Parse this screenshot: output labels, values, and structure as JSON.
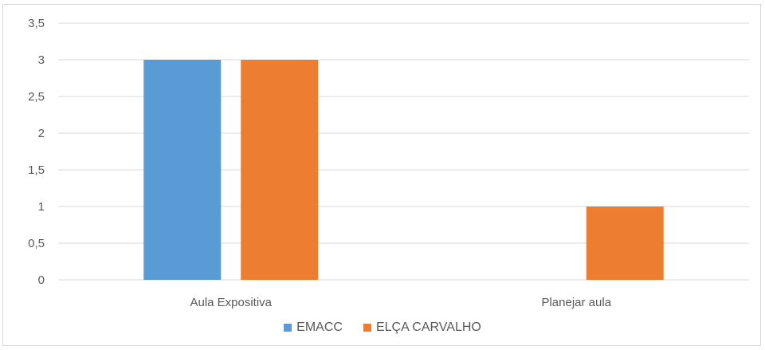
{
  "chart_data": {
    "type": "bar",
    "categories": [
      "Aula Expositiva",
      "Planejar aula"
    ],
    "series": [
      {
        "name": "EMACC",
        "values": [
          3,
          0
        ],
        "color": "#5b9bd5"
      },
      {
        "name": "ELÇA CARVALHO",
        "values": [
          3,
          1
        ],
        "color": "#ed7d31"
      }
    ],
    "ylim": [
      0,
      3.5
    ],
    "yticks": [
      "0",
      "0,5",
      "1",
      "1,5",
      "2",
      "2,5",
      "3",
      "3,5"
    ],
    "grid": true,
    "legend_position": "bottom"
  }
}
